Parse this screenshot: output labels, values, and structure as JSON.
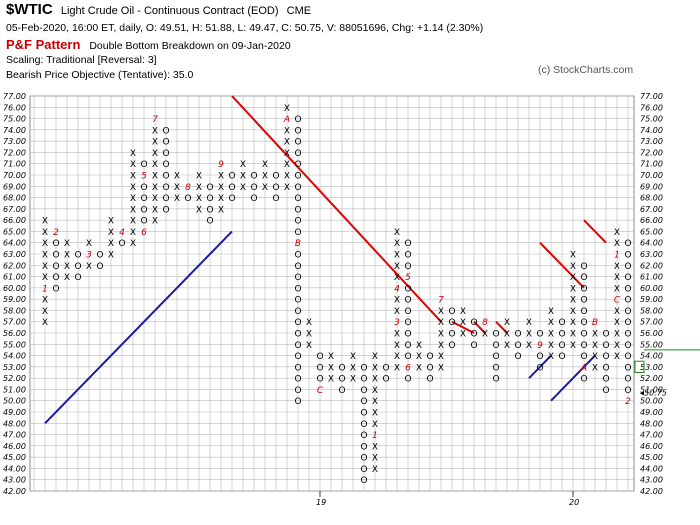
{
  "header": {
    "symbol": "$WTIC",
    "description": "Light Crude Oil - Continuous Contract (EOD)",
    "exchange": "CME",
    "quote_line": "05-Feb-2020, 16:00 ET, daily, O: 49.51, H: 51.88, L: 49.47, C: 50.75, V: 88051696, Chg: +1.14 (2.30%)",
    "pattern_label": "P&F Pattern",
    "pattern_text": "Double Bottom Breakdown on 09-Jan-2020",
    "scaling": "Scaling: Traditional [Reversal: 3]",
    "objective": "Bearish Price Objective (Tentative): 35.0",
    "credit": "(c) StockCharts.com"
  },
  "colors": {
    "x_mark": "#000000",
    "o_mark": "#000000",
    "month_mark": "#cc0000",
    "resistance_line": "#e00000",
    "support_line": "#1a1aa8",
    "grid": "#bbbbbb",
    "last_price": "#cc0000",
    "price_box": "#1f8f1f"
  },
  "chart_data": {
    "type": "point-and-figure",
    "box_size": 1,
    "reversal": 3,
    "ylim": [
      42,
      77
    ],
    "y_ticks": [
      42,
      43,
      44,
      45,
      46,
      47,
      48,
      49,
      50,
      51,
      52,
      53,
      54,
      55,
      56,
      57,
      58,
      59,
      60,
      61,
      62,
      63,
      64,
      65,
      66,
      67,
      68,
      69,
      70,
      71,
      72,
      73,
      74,
      75,
      76,
      77
    ],
    "year_labels": [
      {
        "label": "19",
        "column": 25
      },
      {
        "label": "20",
        "column": 48
      }
    ],
    "last_price": 50.75,
    "last_price_label": "50.75",
    "columns": [
      {
        "type": "X",
        "low": 57,
        "high": 66,
        "months": {
          "60": "1"
        }
      },
      {
        "type": "O",
        "low": 60,
        "high": 65,
        "months": {
          "65": "2"
        }
      },
      {
        "type": "X",
        "low": 61,
        "high": 64
      },
      {
        "type": "O",
        "low": 61,
        "high": 63
      },
      {
        "type": "X",
        "low": 62,
        "high": 64,
        "months": {
          "63": "3"
        }
      },
      {
        "type": "O",
        "low": 62,
        "high": 63
      },
      {
        "type": "X",
        "low": 63,
        "high": 66
      },
      {
        "type": "O",
        "low": 64,
        "high": 65,
        "months": {
          "65": "4"
        }
      },
      {
        "type": "X",
        "low": 64,
        "high": 72
      },
      {
        "type": "O",
        "low": 65,
        "high": 71,
        "months": {
          "70": "5",
          "65": "6"
        }
      },
      {
        "type": "X",
        "low": 66,
        "high": 75,
        "months": {
          "75": "7"
        }
      },
      {
        "type": "O",
        "low": 67,
        "high": 74
      },
      {
        "type": "X",
        "low": 68,
        "high": 70
      },
      {
        "type": "O",
        "low": 68,
        "high": 69,
        "months": {
          "69": "8"
        }
      },
      {
        "type": "X",
        "low": 67,
        "high": 70
      },
      {
        "type": "O",
        "low": 66,
        "high": 69
      },
      {
        "type": "X",
        "low": 67,
        "high": 71,
        "months": {
          "71": "9"
        }
      },
      {
        "type": "O",
        "low": 68,
        "high": 70
      },
      {
        "type": "X",
        "low": 69,
        "high": 71
      },
      {
        "type": "O",
        "low": 68,
        "high": 70
      },
      {
        "type": "X",
        "low": 69,
        "high": 71
      },
      {
        "type": "O",
        "low": 68,
        "high": 70
      },
      {
        "type": "X",
        "low": 69,
        "high": 76,
        "months": {
          "75": "A"
        }
      },
      {
        "type": "O",
        "low": 50,
        "high": 75,
        "months": {
          "64": "B"
        }
      },
      {
        "type": "X",
        "low": 55,
        "high": 57
      },
      {
        "type": "O",
        "low": 51,
        "high": 54,
        "months": {
          "51": "C"
        }
      },
      {
        "type": "X",
        "low": 52,
        "high": 54
      },
      {
        "type": "O",
        "low": 51,
        "high": 53
      },
      {
        "type": "X",
        "low": 52,
        "high": 54
      },
      {
        "type": "O",
        "low": 43,
        "high": 53
      },
      {
        "type": "X",
        "low": 44,
        "high": 54,
        "months": {
          "47": "1"
        }
      },
      {
        "type": "O",
        "low": 52,
        "high": 53,
        "months": {
          "54": "2"
        }
      },
      {
        "type": "X",
        "low": 53,
        "high": 65,
        "months": {
          "57": "3",
          "60": "4"
        }
      },
      {
        "type": "O",
        "low": 52,
        "high": 64,
        "months": {
          "61": "5",
          "53": "6"
        }
      },
      {
        "type": "X",
        "low": 53,
        "high": 55
      },
      {
        "type": "O",
        "low": 52,
        "high": 54
      },
      {
        "type": "X",
        "low": 53,
        "high": 59,
        "months": {
          "59": "7"
        }
      },
      {
        "type": "O",
        "low": 55,
        "high": 58
      },
      {
        "type": "X",
        "low": 56,
        "high": 58
      },
      {
        "type": "O",
        "low": 55,
        "high": 57
      },
      {
        "type": "X",
        "low": 56,
        "high": 57,
        "months": {
          "57": "8"
        }
      },
      {
        "type": "O",
        "low": 52,
        "high": 56
      },
      {
        "type": "X",
        "low": 55,
        "high": 57
      },
      {
        "type": "O",
        "low": 54,
        "high": 56
      },
      {
        "type": "X",
        "low": 55,
        "high": 57
      },
      {
        "type": "O",
        "low": 53,
        "high": 56,
        "months": {
          "55": "9"
        }
      },
      {
        "type": "X",
        "low": 54,
        "high": 58
      },
      {
        "type": "O",
        "low": 54,
        "high": 57
      },
      {
        "type": "X",
        "low": 55,
        "high": 63
      },
      {
        "type": "O",
        "low": 52,
        "high": 62,
        "months": {
          "53": "A"
        }
      },
      {
        "type": "X",
        "low": 53,
        "high": 57,
        "months": {
          "57": "B"
        }
      },
      {
        "type": "O",
        "low": 51,
        "high": 56
      },
      {
        "type": "X",
        "low": 54,
        "high": 65,
        "months": {
          "63": "1",
          "59": "C"
        }
      },
      {
        "type": "O",
        "low": 50,
        "high": 64,
        "months": {
          "50": "2"
        }
      }
    ],
    "trendlines": [
      {
        "kind": "support",
        "points": [
          [
            0,
            48
          ],
          [
            17,
            65
          ]
        ]
      },
      {
        "kind": "resistance",
        "points": [
          [
            17,
            77
          ],
          [
            36,
            57
          ]
        ]
      },
      {
        "kind": "resistance",
        "points": [
          [
            37,
            57
          ],
          [
            39,
            56
          ]
        ]
      },
      {
        "kind": "resistance",
        "points": [
          [
            39,
            57
          ],
          [
            40,
            56
          ]
        ]
      },
      {
        "kind": "resistance",
        "points": [
          [
            41,
            57
          ],
          [
            42,
            56
          ]
        ]
      },
      {
        "kind": "support",
        "points": [
          [
            44,
            52
          ],
          [
            46,
            54
          ]
        ]
      },
      {
        "kind": "resistance",
        "points": [
          [
            45,
            64
          ],
          [
            49,
            60
          ]
        ]
      },
      {
        "kind": "support",
        "points": [
          [
            46,
            50
          ],
          [
            50,
            54
          ]
        ]
      },
      {
        "kind": "resistance",
        "points": [
          [
            49,
            66
          ],
          [
            51,
            64
          ]
        ]
      }
    ]
  }
}
